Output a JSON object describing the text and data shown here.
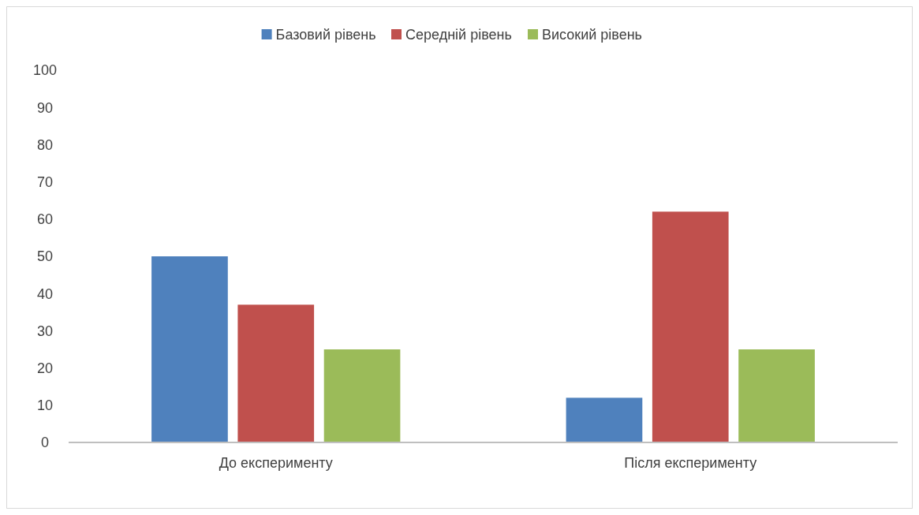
{
  "chart_data": {
    "type": "bar",
    "categories": [
      "До експерименту",
      "Після експерименту"
    ],
    "series": [
      {
        "name": "Базовий рівень",
        "color": "#4f81bd",
        "values": [
          50,
          12
        ]
      },
      {
        "name": "Середній рівень",
        "color": "#c0504d",
        "values": [
          37,
          62
        ]
      },
      {
        "name": "Високий рівень",
        "color": "#9bbb59",
        "values": [
          25,
          25
        ]
      }
    ],
    "ylim": [
      0,
      100
    ],
    "yticks": [
      0,
      10,
      20,
      30,
      40,
      50,
      60,
      70,
      80,
      90,
      100
    ],
    "grid": false,
    "legend": "top"
  }
}
